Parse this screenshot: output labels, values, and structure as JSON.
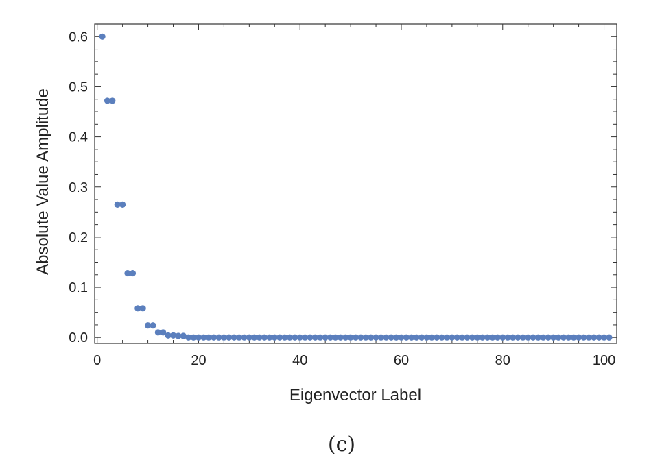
{
  "chart_data": {
    "type": "scatter",
    "xlabel": "Eigenvector Label",
    "ylabel": "Absolute Value Amplitude",
    "xlim": [
      -0.5,
      102.5
    ],
    "ylim": [
      -0.012,
      0.625
    ],
    "xticks": [
      0,
      20,
      40,
      60,
      80,
      100
    ],
    "xtick_labels": [
      "0",
      "20",
      "40",
      "60",
      "80",
      "100"
    ],
    "yticks": [
      0.0,
      0.1,
      0.2,
      0.3,
      0.4,
      0.5,
      0.6
    ],
    "ytick_labels": [
      "0.0",
      "0.1",
      "0.2",
      "0.3",
      "0.4",
      "0.5",
      "0.6"
    ],
    "grid": false,
    "marker_color": "#5b7fbd",
    "series": [
      {
        "x": [
          1,
          2,
          3,
          4,
          5,
          6,
          7,
          8,
          9,
          10,
          11,
          12,
          13,
          14,
          15,
          16,
          17,
          18,
          19,
          20,
          21,
          22,
          23,
          24,
          25,
          26,
          27,
          28,
          29,
          30,
          31,
          32,
          33,
          34,
          35,
          36,
          37,
          38,
          39,
          40,
          41,
          42,
          43,
          44,
          45,
          46,
          47,
          48,
          49,
          50,
          51,
          52,
          53,
          54,
          55,
          56,
          57,
          58,
          59,
          60,
          61,
          62,
          63,
          64,
          65,
          66,
          67,
          68,
          69,
          70,
          71,
          72,
          73,
          74,
          75,
          76,
          77,
          78,
          79,
          80,
          81,
          82,
          83,
          84,
          85,
          86,
          87,
          88,
          89,
          90,
          91,
          92,
          93,
          94,
          95,
          96,
          97,
          98,
          99,
          100,
          101
        ],
        "y": [
          0.6,
          0.472,
          0.472,
          0.265,
          0.265,
          0.128,
          0.128,
          0.058,
          0.058,
          0.024,
          0.024,
          0.01,
          0.01,
          0.004,
          0.004,
          0.003,
          0.003,
          0.0,
          0.0,
          0.0,
          0.0,
          0.0,
          0.0,
          0.0,
          0.0,
          0.0,
          0.0,
          0.0,
          0.0,
          0.0,
          0.0,
          0.0,
          0.0,
          0.0,
          0.0,
          0.0,
          0.0,
          0.0,
          0.0,
          0.0,
          0.0,
          0.0,
          0.0,
          0.0,
          0.0,
          0.0,
          0.0,
          0.0,
          0.0,
          0.0,
          0.0,
          0.0,
          0.0,
          0.0,
          0.0,
          0.0,
          0.0,
          0.0,
          0.0,
          0.0,
          0.0,
          0.0,
          0.0,
          0.0,
          0.0,
          0.0,
          0.0,
          0.0,
          0.0,
          0.0,
          0.0,
          0.0,
          0.0,
          0.0,
          0.0,
          0.0,
          0.0,
          0.0,
          0.0,
          0.0,
          0.0,
          0.0,
          0.0,
          0.0,
          0.0,
          0.0,
          0.0,
          0.0,
          0.0,
          0.0,
          0.0,
          0.0,
          0.0,
          0.0,
          0.0,
          0.0,
          0.0,
          0.0,
          0.0,
          0.0,
          0.0
        ]
      }
    ]
  },
  "caption": "(c)"
}
